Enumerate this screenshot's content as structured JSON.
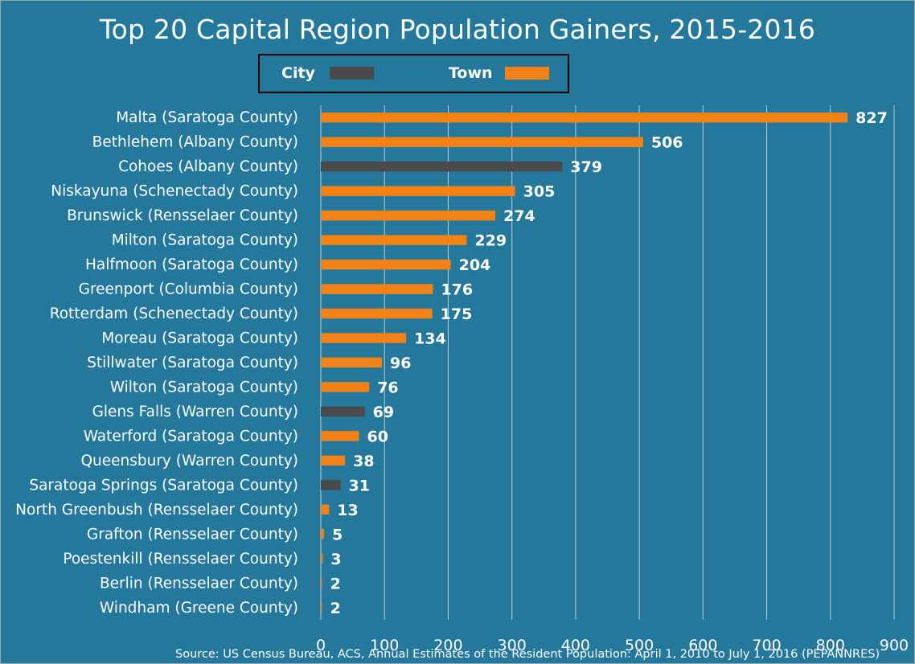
{
  "chart_data": {
    "type": "bar",
    "orientation": "horizontal",
    "title": "Top 20 Capital Region Population Gainers, 2015-2016",
    "legend": [
      {
        "name": "City",
        "color": "#4a4a4c"
      },
      {
        "name": "Town",
        "color": "#f28116"
      }
    ],
    "categories": [
      "Malta (Saratoga County)",
      "Bethlehem (Albany County)",
      "Cohoes (Albany County)",
      "Niskayuna (Schenectady County)",
      "Brunswick (Rensselaer County)",
      "Milton (Saratoga County)",
      "Halfmoon (Saratoga County)",
      "Greenport (Columbia County)",
      "Rotterdam (Schenectady County)",
      "Moreau (Saratoga County)",
      "Stillwater (Saratoga County)",
      "Wilton (Saratoga County)",
      "Glens Falls (Warren County)",
      "Waterford (Saratoga County)",
      "Queensbury (Warren County)",
      "Saratoga Springs (Saratoga County)",
      "North Greenbush (Rensselaer County)",
      "Grafton (Rensselaer County)",
      "Poestenkill (Rensselaer County)",
      "Berlin (Rensselaer County)",
      "Windham (Greene County)"
    ],
    "values": [
      827,
      506,
      379,
      305,
      274,
      229,
      204,
      176,
      175,
      134,
      96,
      76,
      69,
      60,
      38,
      31,
      13,
      5,
      3,
      2,
      2
    ],
    "types": [
      "Town",
      "Town",
      "City",
      "Town",
      "Town",
      "Town",
      "Town",
      "Town",
      "Town",
      "Town",
      "Town",
      "Town",
      "City",
      "Town",
      "Town",
      "City",
      "Town",
      "Town",
      "Town",
      "Town",
      "Town"
    ],
    "xlim": [
      0,
      900
    ],
    "xticks": [
      0,
      100,
      200,
      300,
      400,
      500,
      600,
      700,
      800,
      900
    ],
    "grid": true,
    "xlabel": "",
    "ylabel": ""
  },
  "source": "Source: US Census Bureau, ACS, Annual Estimates of the Resident Population: April 1, 2010 to July 1, 2016 (PEPANNRES)",
  "colors": {
    "background": "#23789c",
    "city": "#4a4a4c",
    "town": "#f28116",
    "gridline": "#b8cdd6",
    "text": "#ffffff"
  }
}
